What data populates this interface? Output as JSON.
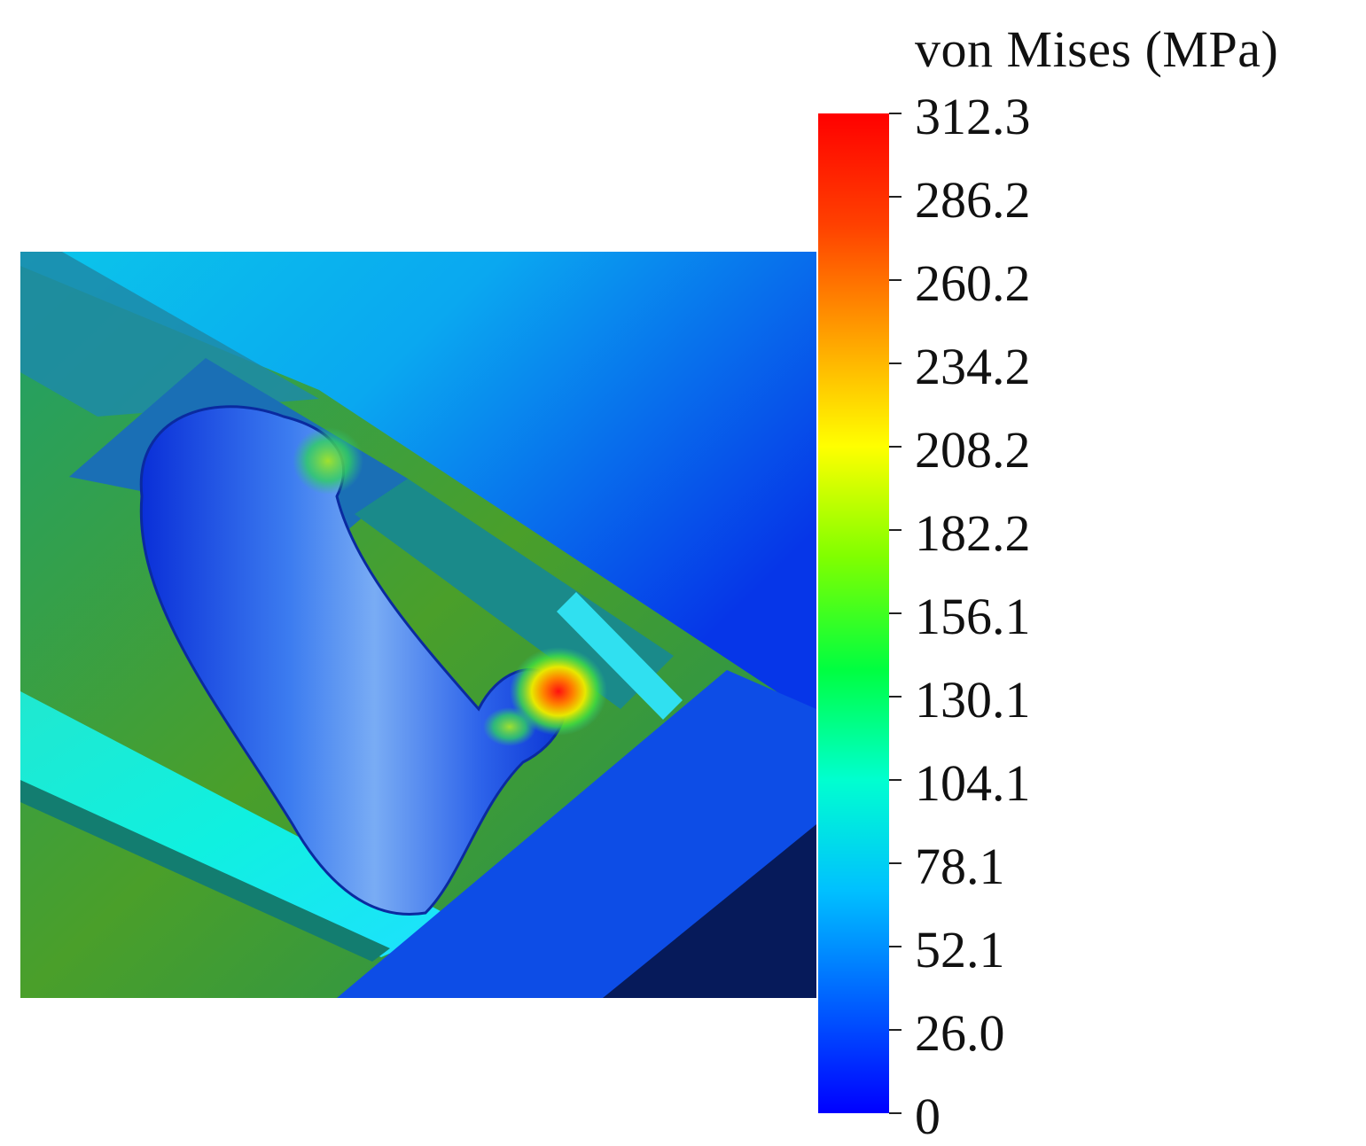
{
  "legend": {
    "title": "von Mises (MPa)",
    "min": 0,
    "max": 312.3,
    "ticks": [
      "312.3",
      "286.2",
      "260.2",
      "234.2",
      "208.2",
      "182.2",
      "156.1",
      "130.1",
      "104.1",
      "78.1",
      "52.1",
      "26.0",
      "0"
    ],
    "colormap": [
      "#0000ff",
      "#0060ff",
      "#00c0ff",
      "#00ffd0",
      "#00ff40",
      "#80ff00",
      "#ffff00",
      "#ffa000",
      "#ff4000",
      "#ff0000"
    ]
  }
}
